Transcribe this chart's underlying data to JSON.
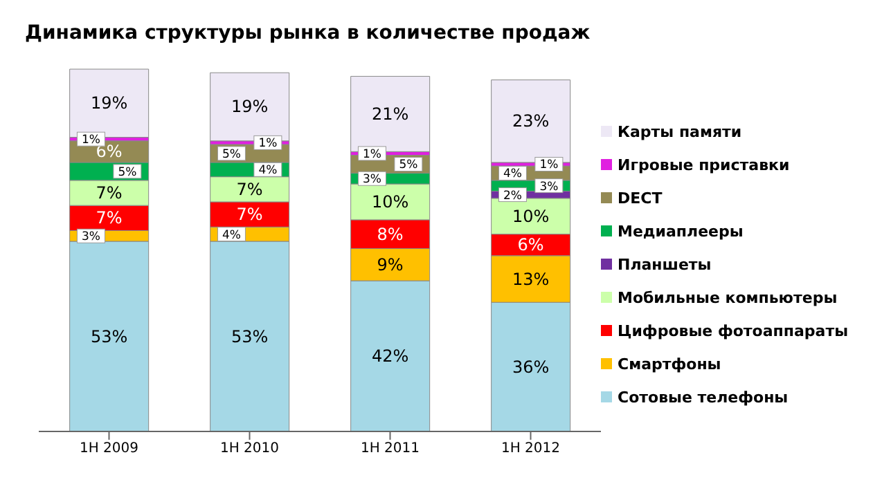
{
  "chart_data": {
    "type": "bar",
    "title": "Динамика структуры рынка в количестве продаж",
    "categories": [
      "1H 2009",
      "1H 2010",
      "1H 2011",
      "1H 2012"
    ],
    "stacked": true,
    "tick_labels": "x",
    "legend": "right",
    "series": [
      {
        "name": "Сотовые телефоны",
        "color": "#a5d8e6",
        "values": [
          53,
          53,
          42,
          36
        ],
        "value_labels": [
          "53%",
          "53%",
          "42%",
          "36%"
        ]
      },
      {
        "name": "Смартфоны",
        "color": "#ffc000",
        "values": [
          3,
          4,
          9,
          13
        ],
        "value_labels": [
          "3%",
          "4%",
          "9%",
          "13%"
        ]
      },
      {
        "name": "Цифровые фотоаппараты",
        "color": "#ff0000",
        "values": [
          7,
          7,
          8,
          6
        ],
        "value_labels": [
          "7%",
          "7%",
          "8%",
          "6%"
        ]
      },
      {
        "name": "Мобильные компьютеры",
        "color": "#ccffaa",
        "values": [
          7,
          7,
          10,
          10
        ],
        "value_labels": [
          "7%",
          "7%",
          "10%",
          "10%"
        ]
      },
      {
        "name": "Планшеты",
        "color": "#7030a0",
        "values": [
          null,
          null,
          null,
          2
        ],
        "value_labels": [
          null,
          null,
          null,
          "2%"
        ]
      },
      {
        "name": "Медиаплееры",
        "color": "#00b050",
        "values": [
          5,
          4,
          3,
          3
        ],
        "value_labels": [
          "5%",
          "4%",
          "3%",
          "3%"
        ]
      },
      {
        "name": "DECT",
        "color": "#948a54",
        "values": [
          6,
          5,
          5,
          4
        ],
        "value_labels": [
          "6%",
          "5%",
          "5%",
          "4%"
        ]
      },
      {
        "name": "Игровые приставки",
        "color": "#e020e0",
        "values": [
          1,
          1,
          1,
          1
        ],
        "value_labels": [
          "1%",
          "1%",
          "1%",
          "1%"
        ]
      },
      {
        "name": "Карты памяти",
        "color": "#ede8f5",
        "values": [
          19,
          19,
          21,
          23
        ],
        "value_labels": [
          "19%",
          "19%",
          "21%",
          "23%"
        ]
      }
    ]
  }
}
